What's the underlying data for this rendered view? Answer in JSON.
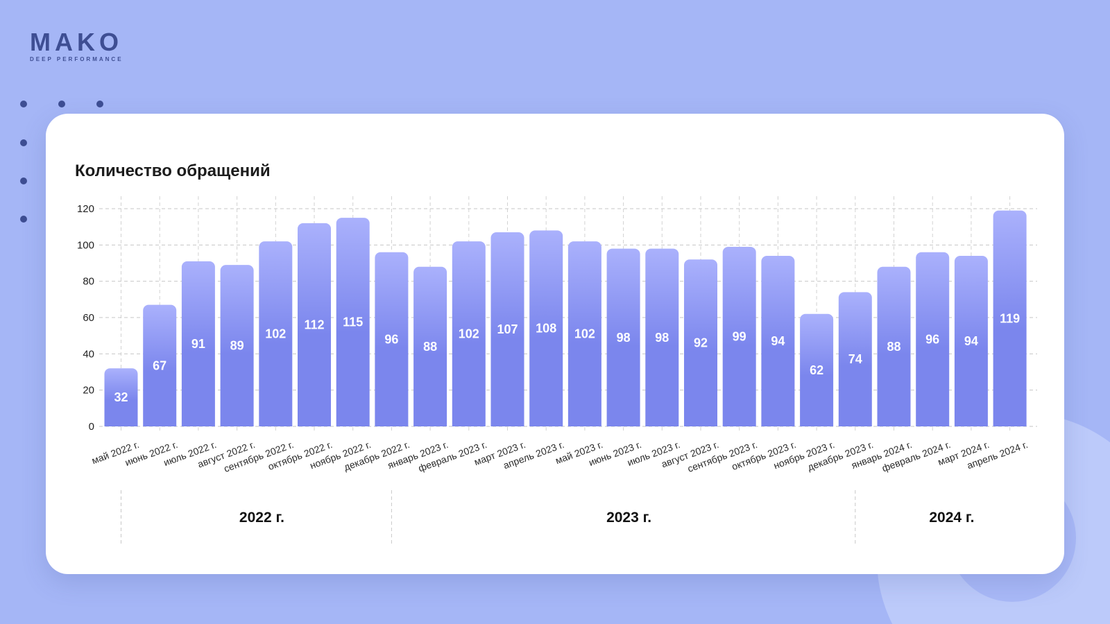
{
  "logo": {
    "name": "MAKO",
    "tagline": "DEEP PERFORMANCE"
  },
  "colors": {
    "background": "#a5b6f6",
    "background_circle": "#bccafa",
    "card": "#ffffff",
    "brand": "#3e4e93",
    "bar_top": "#aab1fc",
    "bar_bottom": "#7b86ed",
    "bar_label": "#ffffff",
    "text": "#1c1c1c",
    "grid": "#c6c6c6"
  },
  "chart_data": {
    "type": "bar",
    "title": "Количество обращений",
    "xlabel": "",
    "ylabel": "",
    "categories": [
      "май 2022 г.",
      "июнь 2022 г.",
      "июль 2022 г.",
      "август 2022 г.",
      "сентябрь 2022 г.",
      "октябрь 2022 г.",
      "ноябрь 2022 г.",
      "декабрь 2022 г.",
      "январь 2023 г.",
      "февраль 2023 г.",
      "март 2023 г.",
      "апрель 2023 г.",
      "май 2023 г.",
      "июнь 2023 г.",
      "июль 2023 г.",
      "август 2023 г.",
      "сентябрь 2023 г.",
      "октябрь 2023 г.",
      "ноябрь 2023 г.",
      "декабрь 2023 г.",
      "январь 2024 г.",
      "февраль 2024 г.",
      "март 2024 г.",
      "апрель 2024 г."
    ],
    "values": [
      32,
      67,
      91,
      89,
      102,
      112,
      115,
      96,
      88,
      102,
      107,
      108,
      102,
      98,
      98,
      92,
      99,
      94,
      62,
      74,
      88,
      96,
      94,
      119
    ],
    "groups": [
      "2022 г.",
      "2023 г.",
      "2024 г."
    ],
    "yticks": [
      0,
      20,
      40,
      60,
      80,
      100,
      120
    ],
    "ylim": [
      0,
      120
    ],
    "grid": true
  }
}
